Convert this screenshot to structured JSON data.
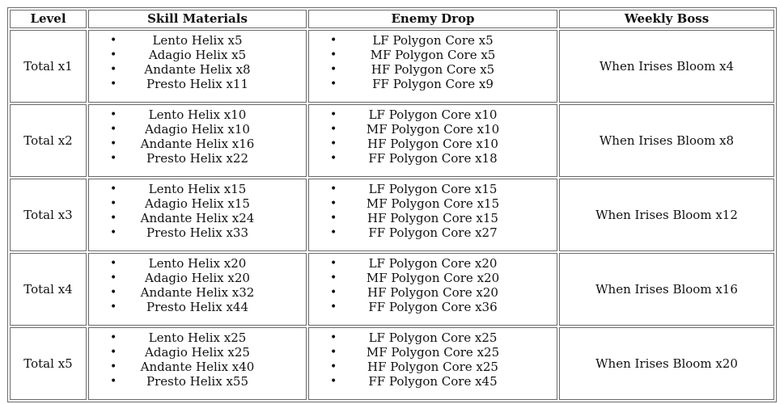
{
  "table": {
    "headers": [
      "Level",
      "Skill Materials",
      "Enemy Drop",
      "Weekly Boss"
    ],
    "rows": [
      {
        "level": "Total x1",
        "skill_materials": [
          "Lento Helix x5",
          "Adagio Helix x5",
          "Andante Helix x8",
          "Presto Helix x11"
        ],
        "enemy_drop": [
          "LF Polygon Core x5",
          "MF Polygon Core x5",
          "HF Polygon Core x5",
          "FF Polygon Core x9"
        ],
        "weekly_boss": "When Irises Bloom x4"
      },
      {
        "level": "Total x2",
        "skill_materials": [
          "Lento Helix x10",
          "Adagio Helix x10",
          "Andante Helix x16",
          "Presto Helix x22"
        ],
        "enemy_drop": [
          "LF Polygon Core x10",
          "MF Polygon Core x10",
          "HF Polygon Core x10",
          "FF Polygon Core x18"
        ],
        "weekly_boss": "When Irises Bloom x8"
      },
      {
        "level": "Total x3",
        "skill_materials": [
          "Lento Helix x15",
          "Adagio Helix x15",
          "Andante Helix x24",
          "Presto Helix x33"
        ],
        "enemy_drop": [
          "LF Polygon Core x15",
          "MF Polygon Core x15",
          "HF Polygon Core x15",
          "FF Polygon Core x27"
        ],
        "weekly_boss": "When Irises Bloom x12"
      },
      {
        "level": "Total x4",
        "skill_materials": [
          "Lento Helix x20",
          "Adagio Helix x20",
          "Andante Helix x32",
          "Presto Helix x44"
        ],
        "enemy_drop": [
          "LF Polygon Core x20",
          "MF Polygon Core x20",
          "HF Polygon Core x20",
          "FF Polygon Core x36"
        ],
        "weekly_boss": "When Irises Bloom x16"
      },
      {
        "level": "Total x5",
        "skill_materials": [
          "Lento Helix x25",
          "Adagio Helix x25",
          "Andante Helix x40",
          "Presto Helix x55"
        ],
        "enemy_drop": [
          "LF Polygon Core x25",
          "MF Polygon Core x25",
          "HF Polygon Core x25",
          "FF Polygon Core x45"
        ],
        "weekly_boss": "When Irises Bloom x20"
      }
    ]
  },
  "icons": {
    "bullet": "•"
  },
  "colors": {
    "border": "#6a6a6a",
    "text": "#111111",
    "background": "#ffffff"
  }
}
